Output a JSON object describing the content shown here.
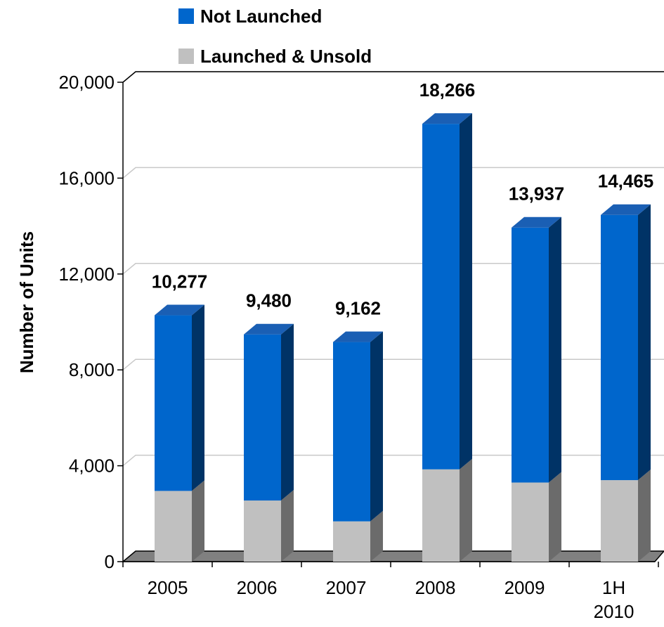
{
  "chart_data": {
    "type": "bar",
    "stacked": true,
    "three_d": true,
    "ylabel": "Number of Units",
    "ylim": [
      0,
      20000
    ],
    "yticks": [
      "0",
      "4,000",
      "8,000",
      "12,000",
      "16,000",
      "20,000"
    ],
    "ytick_values": [
      0,
      4000,
      8000,
      12000,
      16000,
      20000
    ],
    "grid": true,
    "legend": "top",
    "categories": [
      [
        "2005"
      ],
      [
        "2006"
      ],
      [
        "2007"
      ],
      [
        "2008"
      ],
      [
        "2009"
      ],
      [
        "1H",
        "2010"
      ]
    ],
    "series": [
      {
        "name": "Launched & Unsold",
        "color": "#c0c0c0",
        "side_color": "#6b6b6b",
        "top_color": "#d8d8d8",
        "values": [
          2950,
          2550,
          1680,
          3850,
          3300,
          3400
        ]
      },
      {
        "name": "Not Launched",
        "color": "#0066cc",
        "side_color": "#003366",
        "top_color": "#1a5fb4",
        "values": [
          7327,
          6930,
          7482,
          14416,
          10637,
          11065
        ]
      }
    ],
    "totals": [
      10277,
      9480,
      9162,
      18266,
      13937,
      14465
    ],
    "total_labels": [
      "10,277",
      "9,480",
      "9,162",
      "18,266",
      "13,937",
      "14,465"
    ]
  }
}
